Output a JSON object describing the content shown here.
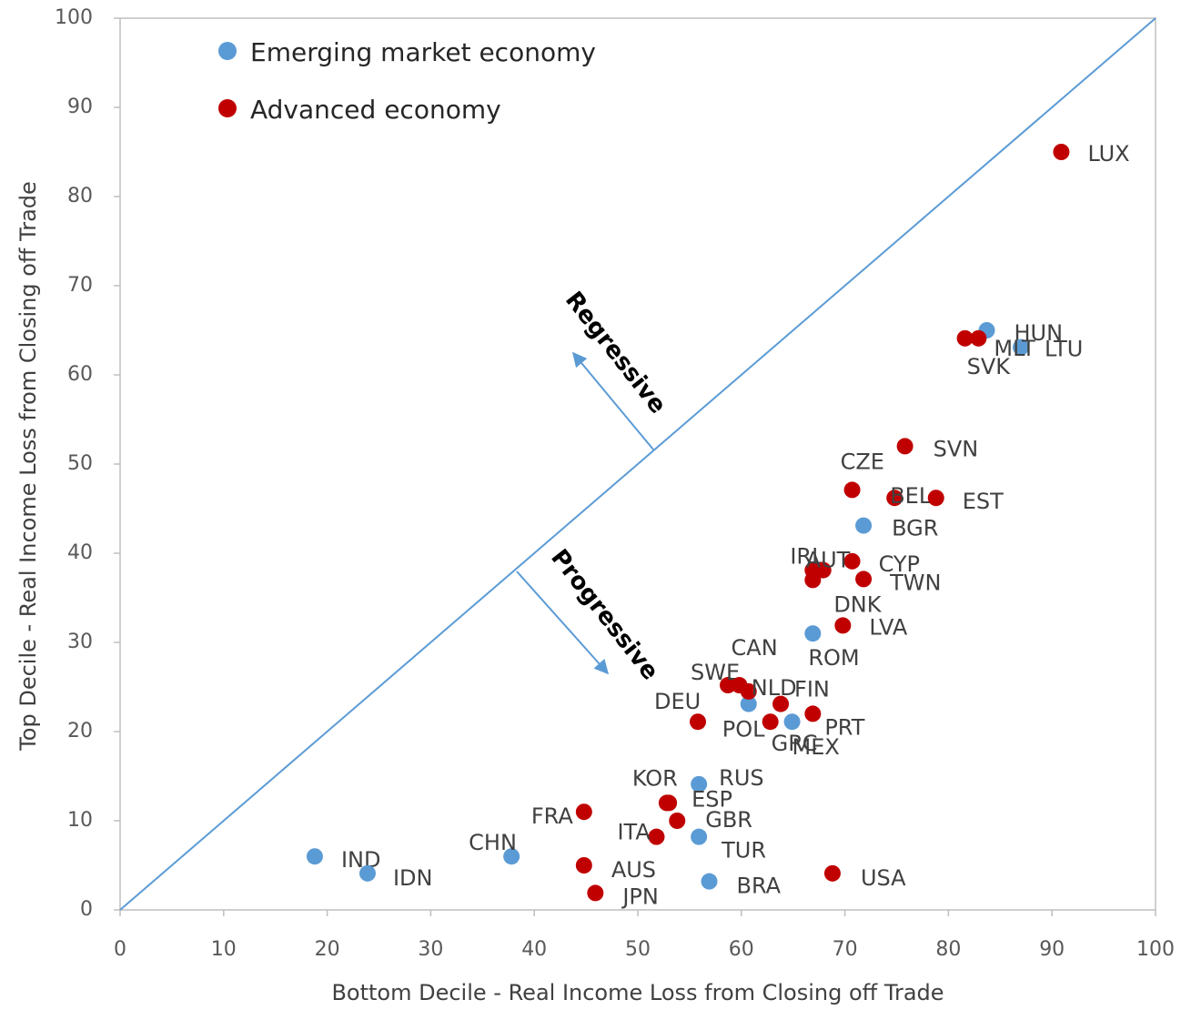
{
  "chart_data": {
    "type": "scatter",
    "x_label": "Bottom Decile - Real Income Loss from Closing off Trade",
    "y_label": "Top Decile - Real Income Loss from Closing off Trade",
    "annotations": [
      "Regressive",
      "Progressive"
    ],
    "xlim": [
      0,
      100
    ],
    "ylim": [
      0,
      100
    ],
    "xticks": [
      0,
      10,
      20,
      30,
      40,
      50,
      60,
      70,
      80,
      90,
      100
    ],
    "yticks": [
      0,
      10,
      20,
      30,
      40,
      50,
      60,
      70,
      80,
      90,
      100
    ],
    "legend": "upper left",
    "series": [
      {
        "name": "Emerging market economy",
        "color": "#5b9bd5",
        "labels": [
          "IND",
          "IDN",
          "CHN",
          "RUS",
          "TUR",
          "BRA",
          "MEX",
          "POL",
          "ROM",
          "BGR",
          "HUN",
          "LTU"
        ],
        "x": [
          18.8,
          23.9,
          37.8,
          55.9,
          55.9,
          56.9,
          64.9,
          60.7,
          66.9,
          71.8,
          83.7,
          87.0
        ],
        "values": [
          6.0,
          4.1,
          6.0,
          14.1,
          8.2,
          3.2,
          21.1,
          23.1,
          31.0,
          43.1,
          65.0,
          63.1
        ]
      },
      {
        "name": "Advanced economy",
        "color": "#c00000",
        "labels": [
          "LUX",
          "SVK",
          "MLT",
          "SVN",
          "CZE",
          "BEL",
          "EST",
          "CYP",
          "TWN",
          "IRL",
          "AUT",
          "DNK",
          "LVA",
          "SWE",
          "CAN",
          "NLD",
          "FIN",
          "PRT",
          "GRC",
          "DEU",
          "KOR",
          "ESP",
          "GBR",
          "FRA",
          "ITA",
          "AUS",
          "JPN",
          "USA"
        ],
        "x": [
          90.9,
          81.6,
          82.9,
          75.8,
          70.7,
          74.8,
          78.8,
          70.7,
          71.8,
          66.9,
          67.9,
          66.9,
          69.8,
          58.7,
          59.8,
          60.7,
          63.8,
          66.9,
          62.8,
          55.8,
          52.8,
          53.0,
          53.8,
          44.8,
          51.8,
          44.8,
          45.9,
          68.8
        ],
        "values": [
          85.0,
          64.1,
          64.1,
          52.0,
          47.1,
          46.2,
          46.2,
          39.1,
          37.1,
          38.1,
          38.1,
          37.0,
          31.9,
          25.2,
          25.2,
          24.5,
          23.1,
          22.0,
          21.1,
          21.1,
          12.0,
          12.0,
          10.0,
          11.0,
          8.2,
          5.0,
          1.9,
          4.1
        ]
      }
    ]
  }
}
